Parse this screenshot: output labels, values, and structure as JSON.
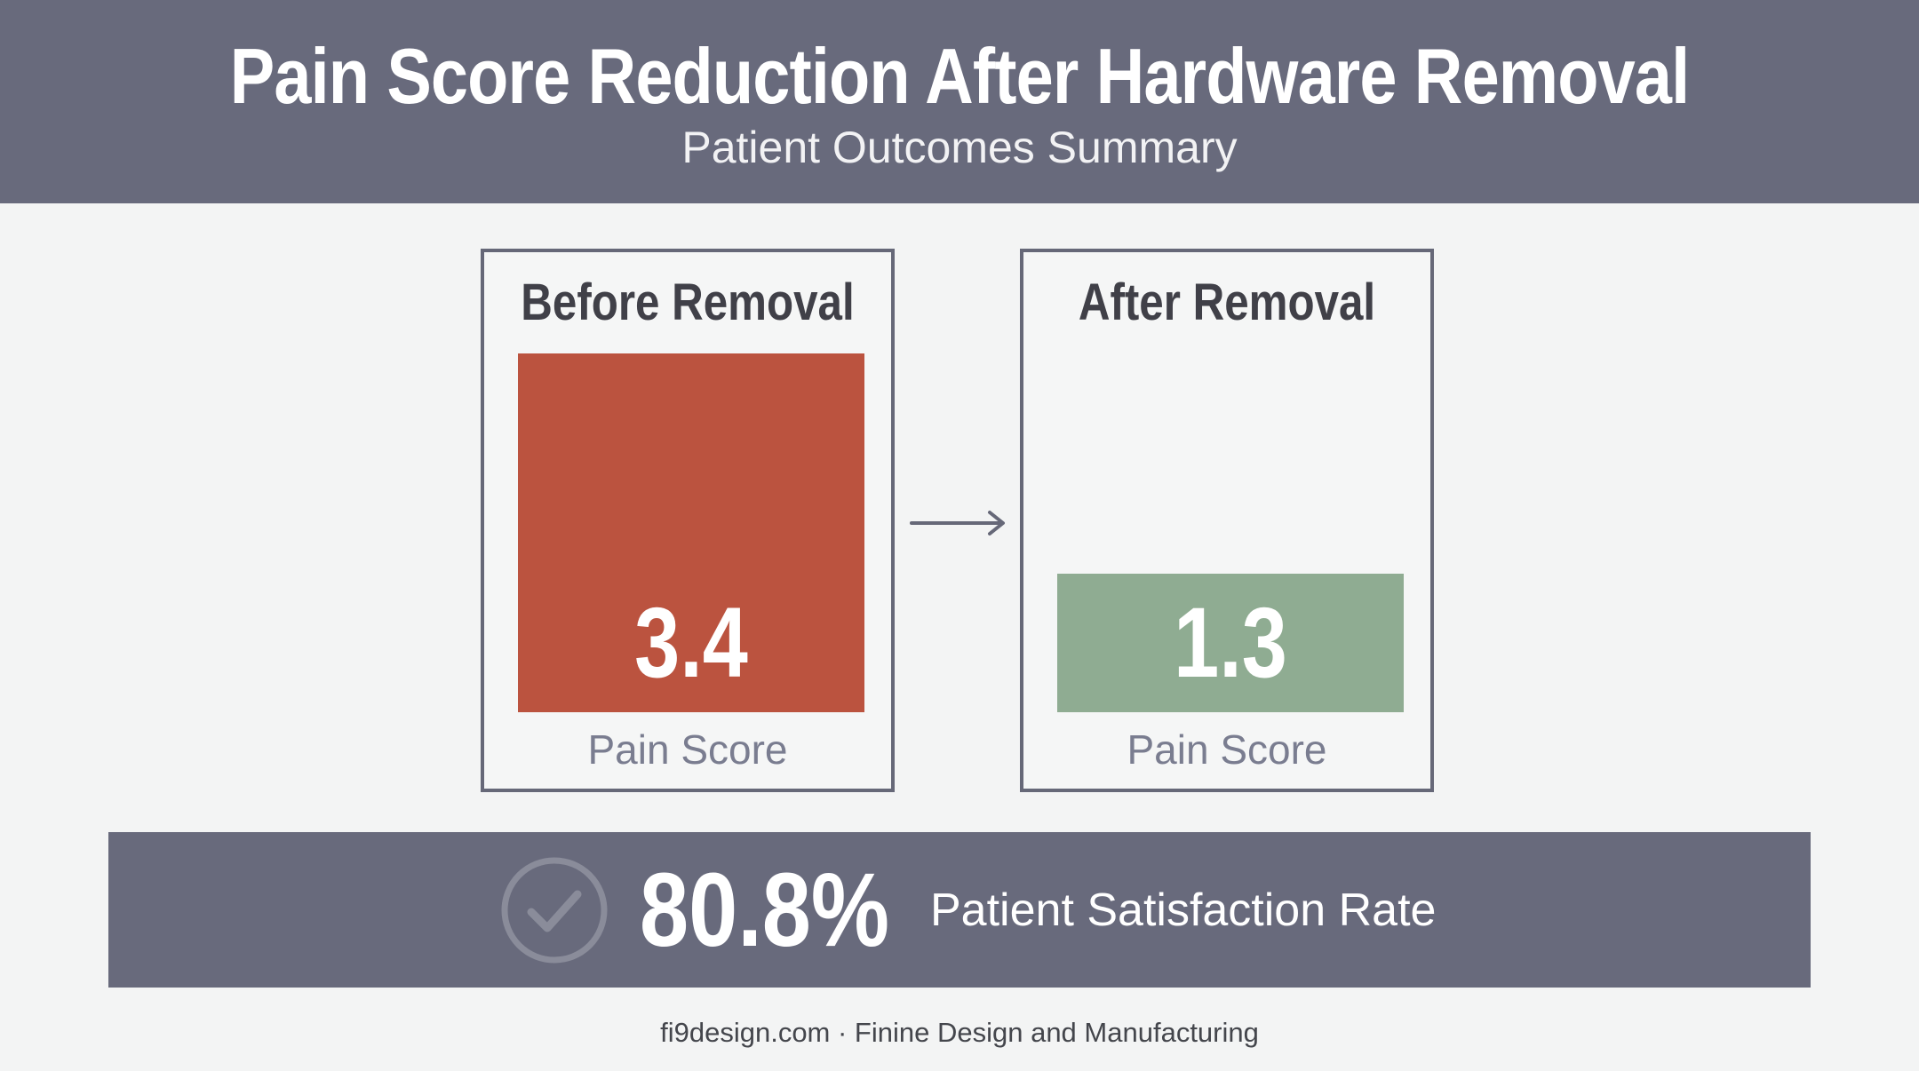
{
  "header": {
    "title": "Pain Score Reduction After Hardware Removal",
    "subtitle": "Patient Outcomes Summary"
  },
  "chart_data": {
    "type": "bar",
    "categories": [
      "Before Removal",
      "After Removal"
    ],
    "values": [
      3.4,
      1.3
    ],
    "value_labels": [
      "3.4",
      "1.3"
    ],
    "ylabel": "Pain Score",
    "bar_colors": [
      "#bb533f",
      "#8fac92"
    ],
    "ylim": [
      0,
      3.4
    ]
  },
  "panels": [
    {
      "title": "Before Removal",
      "value": "3.4",
      "label": "Pain Score"
    },
    {
      "title": "After Removal",
      "value": "1.3",
      "label": "Pain Score"
    }
  ],
  "summary": {
    "value": "80.8%",
    "label": "Patient Satisfaction Rate",
    "icon": "check-circle-icon"
  },
  "footer": {
    "text": "fi9design.com · Finine Design and Manufacturing"
  },
  "colors": {
    "header_bg": "#686a7c",
    "before_bar": "#bb533f",
    "after_bar": "#8fac92"
  }
}
